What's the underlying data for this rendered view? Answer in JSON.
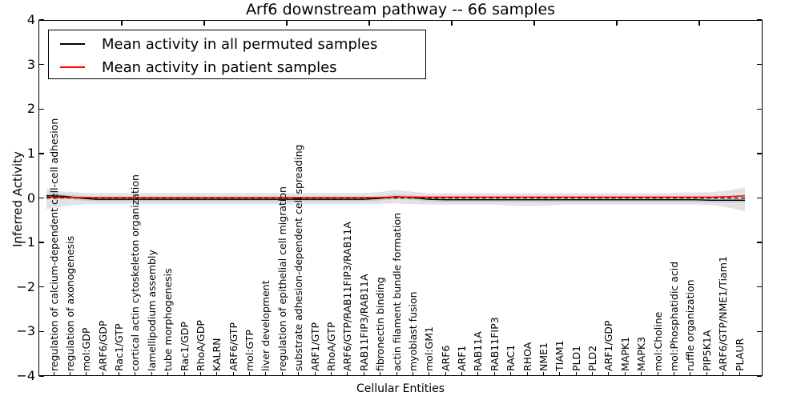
{
  "title": "Arf6 downstream pathway -- 66 samples",
  "axes": {
    "ylabel": "Inferred Activity",
    "xlabel": "Cellular Entities",
    "ytick_labels": [
      "4",
      "3",
      "2",
      "1",
      "0",
      "−1",
      "−2",
      "−3",
      "−4"
    ],
    "ytick_values": [
      4,
      3,
      2,
      1,
      0,
      -1,
      -2,
      -3,
      -4
    ]
  },
  "legend": {
    "items": [
      {
        "label": "Mean activity in all permuted samples",
        "color": "#000000"
      },
      {
        "label": "Mean activity in patient samples",
        "color": "#ff0000"
      }
    ]
  },
  "chart_data": {
    "type": "line",
    "title": "Arf6 downstream pathway -- 66 samples",
    "xlabel": "Cellular Entities",
    "ylabel": "Inferred Activity",
    "ylim": [
      -4,
      4
    ],
    "grid": false,
    "legend_position": "upper left",
    "zero_line_style": "dashed",
    "categories": [
      "regulation of calcium-dependent cell-cell adhesion",
      "regulation of axonogenesis",
      "mol:GDP",
      "ARF6/GDP",
      "Rac1/GTP",
      "cortical actin cytoskeleton organization",
      "lamellipodium assembly",
      "tube morphogenesis",
      "Rac1/GDP",
      "RhoA/GDP",
      "KALRN",
      "ARF6/GTP",
      "mol:GTP",
      "liver development",
      "regulation of epithelial cell migration",
      "substrate adhesion-dependent cell spreading",
      "ARF1/GTP",
      "RhoA/GTP",
      "ARF6/GTP/RAB11FIP3/RAB11A",
      "RAB11FIP3/RAB11A",
      "fibronectin binding",
      "actin filament bundle formation",
      "myoblast fusion",
      "mol:GM1",
      "ARF6",
      "ARF1",
      "RAB11A",
      "RAB11FIP3",
      "RAC1",
      "RHOA",
      "NME1",
      "TIAM1",
      "PLD1",
      "PLD2",
      "ARF1/GDP",
      "MAPK1",
      "MAPK3",
      "mol:Choline",
      "mol:Phosphatidic acid",
      "ruffle organization",
      "PIP5K1A",
      "ARF6/GTP/NME1/Tiam1",
      "PLAUR"
    ],
    "series": [
      {
        "name": "Mean activity in all permuted samples",
        "color": "#000000",
        "values": [
          0.05,
          0.04,
          0.0,
          -0.03,
          -0.03,
          -0.03,
          -0.03,
          -0.03,
          -0.03,
          -0.03,
          -0.03,
          -0.03,
          -0.03,
          -0.03,
          -0.03,
          -0.03,
          -0.03,
          -0.03,
          -0.03,
          -0.03,
          -0.01,
          0.03,
          0.01,
          -0.03,
          -0.04,
          -0.04,
          -0.04,
          -0.04,
          -0.04,
          -0.04,
          -0.04,
          -0.04,
          -0.04,
          -0.04,
          -0.04,
          -0.04,
          -0.04,
          -0.04,
          -0.04,
          -0.04,
          -0.05,
          -0.05,
          -0.05
        ]
      },
      {
        "name": "Mean activity in patient samples",
        "color": "#ff0000",
        "values": [
          0.02,
          0.01,
          0.01,
          0.01,
          0.01,
          0.01,
          0.01,
          0.01,
          0.01,
          0.01,
          0.01,
          0.01,
          0.01,
          0.01,
          0.01,
          0.01,
          0.01,
          0.01,
          0.01,
          0.01,
          0.01,
          0.02,
          0.02,
          0.02,
          0.02,
          0.02,
          0.02,
          0.02,
          0.02,
          0.02,
          0.02,
          0.02,
          0.02,
          0.02,
          0.02,
          0.02,
          0.02,
          0.02,
          0.02,
          0.02,
          0.02,
          0.03,
          0.05
        ]
      }
    ],
    "band": {
      "name": "permuted samples spread",
      "color": "#000000",
      "opacity": 0.11,
      "upper": [
        0.21,
        0.15,
        0.12,
        0.11,
        0.11,
        0.11,
        0.11,
        0.11,
        0.11,
        0.11,
        0.11,
        0.11,
        0.11,
        0.11,
        0.11,
        0.11,
        0.11,
        0.11,
        0.11,
        0.11,
        0.13,
        0.18,
        0.14,
        0.11,
        0.11,
        0.11,
        0.11,
        0.11,
        0.11,
        0.11,
        0.11,
        0.11,
        0.11,
        0.11,
        0.11,
        0.11,
        0.11,
        0.11,
        0.12,
        0.12,
        0.13,
        0.17,
        0.24
      ],
      "lower": [
        -0.25,
        -0.19,
        -0.15,
        -0.14,
        -0.14,
        -0.14,
        -0.14,
        -0.14,
        -0.14,
        -0.14,
        -0.14,
        -0.14,
        -0.14,
        -0.14,
        -0.14,
        -0.14,
        -0.14,
        -0.14,
        -0.14,
        -0.14,
        -0.13,
        -0.12,
        -0.14,
        -0.15,
        -0.15,
        -0.15,
        -0.15,
        -0.15,
        -0.17,
        -0.18,
        -0.17,
        -0.15,
        -0.15,
        -0.15,
        -0.15,
        -0.15,
        -0.15,
        -0.15,
        -0.15,
        -0.15,
        -0.16,
        -0.21,
        -0.3
      ],
      "inner_halfwidth": 0.05
    }
  }
}
